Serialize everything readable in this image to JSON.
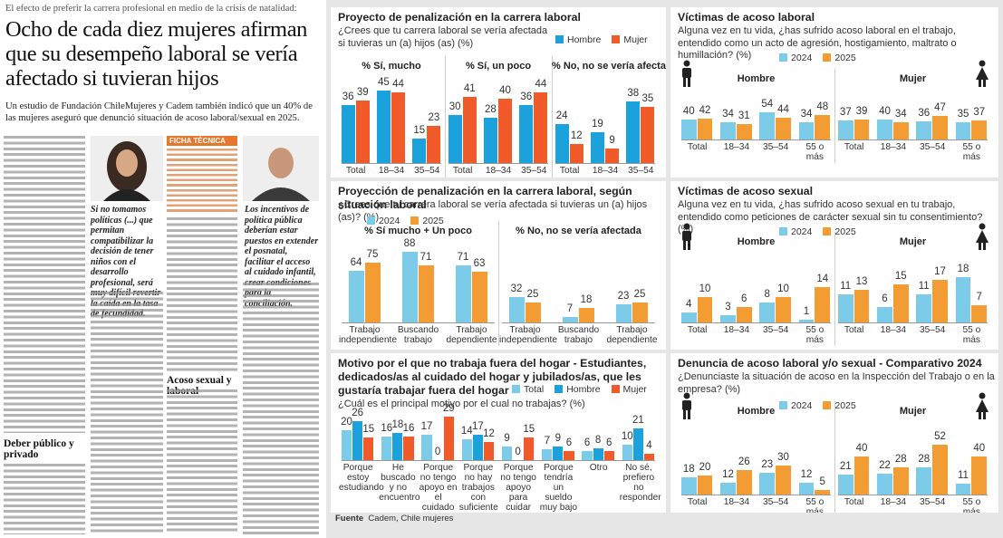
{
  "article": {
    "kicker": "El efecto de preferir la carrera profesional en medio de la crisis de natalidad:",
    "headline": "Ocho de cada diez mujeres afirman que su desempeño laboral se vería afectado si tuvieran hijos",
    "lead": "Un estudio de Fundación ChileMujeres y Cadem también indicó que un 40% de las mujeres aseguró que denunció situación de acoso laboral/sexual en 2025.",
    "quote_1": "Si no tomamos políticas (...) que permitan compatibilizar la decisión de tener niños con el desarrollo profesional, será muy difícil revertir la caída en la tasa de fecundidad.",
    "quote_2": "Los incentivos de política pública deberían estar puestos en extender el posnatal, facilitar el acceso al cuidado infantil, crear condiciones para la conciliación.",
    "fact_box_title": "FICHA TÉCNICA",
    "subhead_1": "Acoso sexual y laboral",
    "subhead_2": "Deber público y privado"
  },
  "charts": [
    {
      "type": "grouped_bar",
      "title": "Proyecto de penalización en la carrera laboral",
      "question": "¿Crees que tu carrera laboral se vería afectada si tuvieras un (a) hijos (as) (%)",
      "series": [
        {
          "name": "Hombre",
          "color": "#1ba1dc"
        },
        {
          "name": "Mujer",
          "color": "#f15a29"
        }
      ],
      "groups": [
        {
          "label": "% Sí, mucho",
          "categories": [
            "Total",
            "18–34",
            "35–54"
          ],
          "values": [
            [
              36,
              45,
              15
            ],
            [
              39,
              44,
              23
            ]
          ]
        },
        {
          "label": "% Sí, un poco",
          "categories": [
            "Total",
            "18–34",
            "35–54"
          ],
          "values": [
            [
              30,
              28,
              36
            ],
            [
              41,
              40,
              44
            ]
          ]
        },
        {
          "label": "% No, no se vería afectada",
          "categories": [
            "Total",
            "18–34",
            "35–54"
          ],
          "values": [
            [
              24,
              19,
              38
            ],
            [
              12,
              9,
              35
            ]
          ]
        }
      ]
    },
    {
      "type": "grouped_bar",
      "title": "Víctimas de acoso laboral",
      "question": "Alguna vez en tu vida, ¿has sufrido acoso laboral en el trabajo, entendido como un acto de agresión, hostigamiento, maltrato o humillación? (%)",
      "series": [
        {
          "name": "2024",
          "color": "#7ccbe9"
        },
        {
          "name": "2025",
          "color": "#f39c34"
        }
      ],
      "groups": [
        {
          "label": "Hombre",
          "categories": [
            "Total",
            "18–34",
            "35–54",
            "55 o más"
          ],
          "values": [
            [
              40,
              34,
              54,
              34
            ],
            [
              42,
              31,
              44,
              48
            ]
          ]
        },
        {
          "label": "Mujer",
          "categories": [
            "Total",
            "18–34",
            "35–54",
            "55 o más"
          ],
          "values": [
            [
              37,
              40,
              36,
              35
            ],
            [
              39,
              34,
              47,
              37
            ]
          ]
        }
      ]
    },
    {
      "type": "grouped_bar",
      "title": "Proyección de penalización en la carrera laboral, según situación laboral",
      "question": "¿Crees que tu carrera laboral se vería afectada si tuvieras un (a) hijos (as)? (%)",
      "series": [
        {
          "name": "2024",
          "color": "#7ccbe9"
        },
        {
          "name": "2025",
          "color": "#f39c34"
        }
      ],
      "groups": [
        {
          "label": "% Sí mucho + Un poco",
          "categories": [
            "Trabajo independiente",
            "Buscando trabajo",
            "Trabajo dependiente"
          ],
          "values": [
            [
              64,
              88,
              71
            ],
            [
              75,
              71,
              63
            ]
          ]
        },
        {
          "label": "% No, no se vería afectada",
          "categories": [
            "Trabajo independiente",
            "Buscando trabajo",
            "Trabajo dependiente"
          ],
          "values": [
            [
              32,
              7,
              23
            ],
            [
              25,
              18,
              25
            ]
          ]
        }
      ]
    },
    {
      "type": "grouped_bar",
      "title": "Víctimas de acoso sexual",
      "question": "Alguna vez en tu vida, ¿has sufrido acoso sexual en tu trabajo, entendido como peticiones de carácter sexual sin tu consentimiento? (%)",
      "series": [
        {
          "name": "2024",
          "color": "#7ccbe9"
        },
        {
          "name": "2025",
          "color": "#f39c34"
        }
      ],
      "groups": [
        {
          "label": "Hombre",
          "categories": [
            "Total",
            "18–34",
            "35–54",
            "55 o más"
          ],
          "values": [
            [
              4,
              3,
              8,
              1
            ],
            [
              10,
              6,
              10,
              14
            ]
          ]
        },
        {
          "label": "Mujer",
          "categories": [
            "Total",
            "18–34",
            "35–54",
            "55 o más"
          ],
          "values": [
            [
              11,
              6,
              11,
              18
            ],
            [
              13,
              15,
              17,
              7
            ]
          ]
        }
      ]
    },
    {
      "type": "grouped_bar",
      "title": "Motivo por el que no trabaja fuera del hogar - Estudiantes, dedicados/as al cuidado del hogar y jubilados/as, que les gustaría trabajar fuera del hogar",
      "question": "¿Cuál es el principal motivo por el cual no trabajas? (%)",
      "series": [
        {
          "name": "Total",
          "color": "#7ccbe9"
        },
        {
          "name": "Hombre",
          "color": "#1ba1dc"
        },
        {
          "name": "Mujer",
          "color": "#f15a29"
        }
      ],
      "groups": [
        {
          "label": null,
          "categories": [
            "Porque estoy estudiando",
            "He buscado y no encuentro",
            "Porque no tengo apoyo en el cuidado de mis hijos (as)",
            "Porque no hay trabajos con suficiente flexibilidad",
            "Porque no tengo apoyo para cuidar familiares/ adultos dependientes",
            "Porque tendría un sueldo muy bajo",
            "Otro",
            "No sé, prefiero no responder"
          ],
          "values": [
            [
              20,
              16,
              17,
              14,
              9,
              7,
              6,
              10
            ],
            [
              26,
              18,
              0,
              17,
              0,
              9,
              8,
              21
            ],
            [
              15,
              16,
              29,
              12,
              15,
              6,
              6,
              4
            ]
          ]
        }
      ]
    },
    {
      "type": "grouped_bar",
      "title": "Denuncia de acoso laboral y/o sexual - Comparativo 2024",
      "question": "¿Denunciaste la situación de acoso en la Inspección del Trabajo o en la empresa? (%)",
      "series": [
        {
          "name": "2024",
          "color": "#7ccbe9"
        },
        {
          "name": "2025",
          "color": "#f39c34"
        }
      ],
      "groups": [
        {
          "label": "Hombre",
          "categories": [
            "Total",
            "18–34",
            "35–54",
            "55 o más"
          ],
          "values": [
            [
              18,
              12,
              23,
              12
            ],
            [
              20,
              26,
              30,
              5
            ]
          ]
        },
        {
          "label": "Mujer",
          "categories": [
            "Total",
            "18–34",
            "35–54",
            "55 o más"
          ],
          "values": [
            [
              21,
              22,
              28,
              11
            ],
            [
              40,
              28,
              52,
              40
            ]
          ]
        }
      ]
    }
  ],
  "source_label": "Fuente",
  "source": "Cadem, Chile mujeres"
}
